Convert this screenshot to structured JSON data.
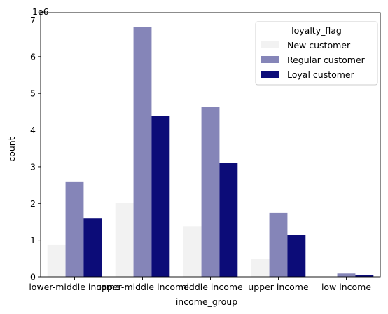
{
  "chart_data": {
    "type": "bar",
    "xlabel": "income_group",
    "ylabel": "count",
    "y_multiplier_label": "1e6",
    "y_multiplier": 1000000,
    "ylim": [
      0,
      7200000
    ],
    "yticks": [
      0,
      1000000,
      2000000,
      3000000,
      4000000,
      5000000,
      6000000,
      7000000
    ],
    "ytick_labels": [
      "0",
      "1",
      "2",
      "3",
      "4",
      "5",
      "6",
      "7"
    ],
    "categories": [
      "lower-middle income",
      "upper-middle income",
      "middle income",
      "upper income",
      "low income"
    ],
    "legend": {
      "title": "loyalty_flag",
      "placement": "upper right"
    },
    "grid": false,
    "series": [
      {
        "name": "New customer",
        "color": "#f2f2f2",
        "values": [
          880000,
          2010000,
          1370000,
          490000,
          10000
        ]
      },
      {
        "name": "Regular customer",
        "color": "#8585b8",
        "values": [
          2600000,
          6800000,
          4640000,
          1740000,
          90000
        ]
      },
      {
        "name": "Loyal customer",
        "color": "#0c0c78",
        "values": [
          1600000,
          4390000,
          3110000,
          1130000,
          50000
        ]
      }
    ]
  }
}
